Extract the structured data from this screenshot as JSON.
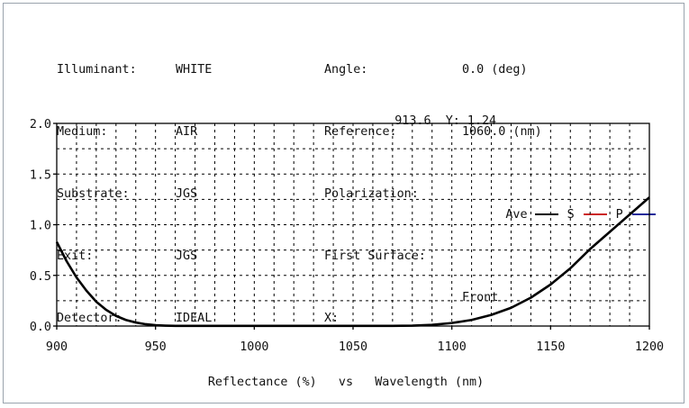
{
  "info": {
    "left": [
      {
        "label": "Illuminant:",
        "value": "WHITE"
      },
      {
        "label": "Medium:",
        "value": "AIR"
      },
      {
        "label": "Substrate:",
        "value": "JGS"
      },
      {
        "label": "Exit:",
        "value": "JGS"
      },
      {
        "label": "Detector:",
        "value": "IDEAL"
      }
    ],
    "angle": {
      "label": "Angle:",
      "value": "0.0 (deg)"
    },
    "reference": {
      "label": "Reference:",
      "value": "1060.0 (nm)"
    },
    "polarization": {
      "label": "Polarization:",
      "ave": "Ave",
      "s": "S",
      "p": "P"
    },
    "first_surface": {
      "label": "First Surface:",
      "value": "Front"
    },
    "cursor": {
      "x_label": "X:",
      "x_value": "913.6",
      "y_label": "Y:",
      "y_value": "1.24"
    }
  },
  "colors": {
    "ave": "#000000",
    "s": "#cc2222",
    "p": "#1a2a9a",
    "grid": "#000000"
  },
  "chart_data": {
    "type": "line",
    "xlabel": "Reflectance (%)   vs   Wavelength (nm)",
    "ylabel": "",
    "xlim": [
      900,
      1200
    ],
    "ylim": [
      0,
      2.0
    ],
    "x_ticks": [
      "900",
      "950",
      "1000",
      "1050",
      "1100",
      "1150",
      "1200"
    ],
    "y_ticks": [
      "0.0",
      "0.5",
      "1.0",
      "1.5",
      "2.0"
    ],
    "grid": true,
    "series": [
      {
        "name": "Ave",
        "x": [
          900,
          905,
          910,
          915,
          920,
          925,
          930,
          935,
          940,
          945,
          950,
          955,
          960,
          970,
          980,
          990,
          1000,
          1010,
          1020,
          1030,
          1040,
          1050,
          1060,
          1070,
          1080,
          1090,
          1100,
          1110,
          1120,
          1130,
          1140,
          1150,
          1160,
          1170,
          1180,
          1190,
          1200
        ],
        "y": [
          0.83,
          0.64,
          0.48,
          0.35,
          0.24,
          0.16,
          0.1,
          0.06,
          0.035,
          0.018,
          0.008,
          0.004,
          0.002,
          0.002,
          0.002,
          0.002,
          0.002,
          0.002,
          0.002,
          0.002,
          0.002,
          0.002,
          0.002,
          0.002,
          0.004,
          0.012,
          0.03,
          0.06,
          0.11,
          0.18,
          0.28,
          0.41,
          0.57,
          0.76,
          0.93,
          1.1,
          1.27
        ]
      }
    ]
  }
}
